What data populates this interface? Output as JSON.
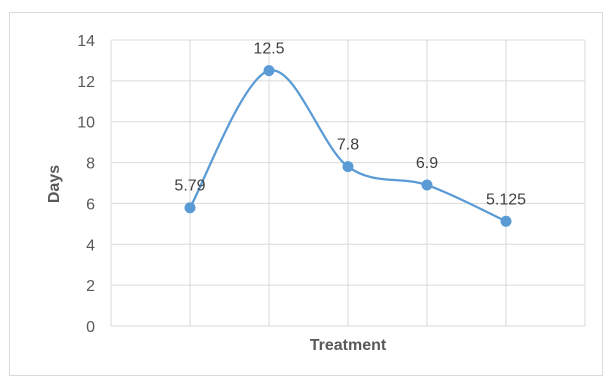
{
  "chart_data": {
    "type": "line",
    "smooth": true,
    "x": [
      "",
      "",
      "",
      "",
      ""
    ],
    "series": [
      {
        "values": [
          5.79,
          12.5,
          7.8,
          6.9,
          5.125
        ],
        "labels": [
          "5.79",
          "12.5",
          "7.8",
          "6.9",
          "5.125"
        ]
      }
    ],
    "xlabel": "Treatment",
    "ylabel": "Days",
    "ylim": [
      0,
      14
    ],
    "yticks": [
      0,
      2,
      4,
      6,
      8,
      10,
      12,
      14
    ],
    "grid": true,
    "legend": "none",
    "colors": {
      "line": "#5b9bd5",
      "marker": "#5b9bd5",
      "grid": "#d9d9d9",
      "axis_text": "#595959"
    }
  }
}
